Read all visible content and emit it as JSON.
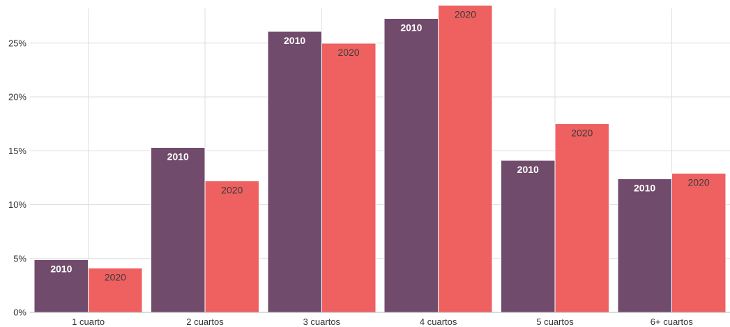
{
  "chart_data": {
    "type": "bar",
    "title": "",
    "xlabel": "",
    "ylabel": "",
    "categories": [
      "1 cuarto",
      "2 cuartos",
      "3 cuartos",
      "4 cuartos",
      "5 cuartos",
      "6+ cuartos"
    ],
    "series": [
      {
        "name": "2010",
        "color": "#714b6b",
        "values": [
          4.9,
          15.3,
          26.1,
          27.3,
          14.1,
          12.4
        ]
      },
      {
        "name": "2020",
        "color": "#ef6061",
        "values": [
          4.1,
          12.2,
          25.0,
          28.5,
          17.5,
          12.9
        ]
      }
    ],
    "ylim": [
      0,
      29
    ],
    "yticks": [
      0,
      5,
      10,
      15,
      20,
      25
    ],
    "ytick_labels": [
      "0%",
      "5%",
      "10%",
      "15%",
      "20%",
      "25%"
    ],
    "grid": true,
    "legend": "none",
    "data_labels": "series name on each bar"
  }
}
